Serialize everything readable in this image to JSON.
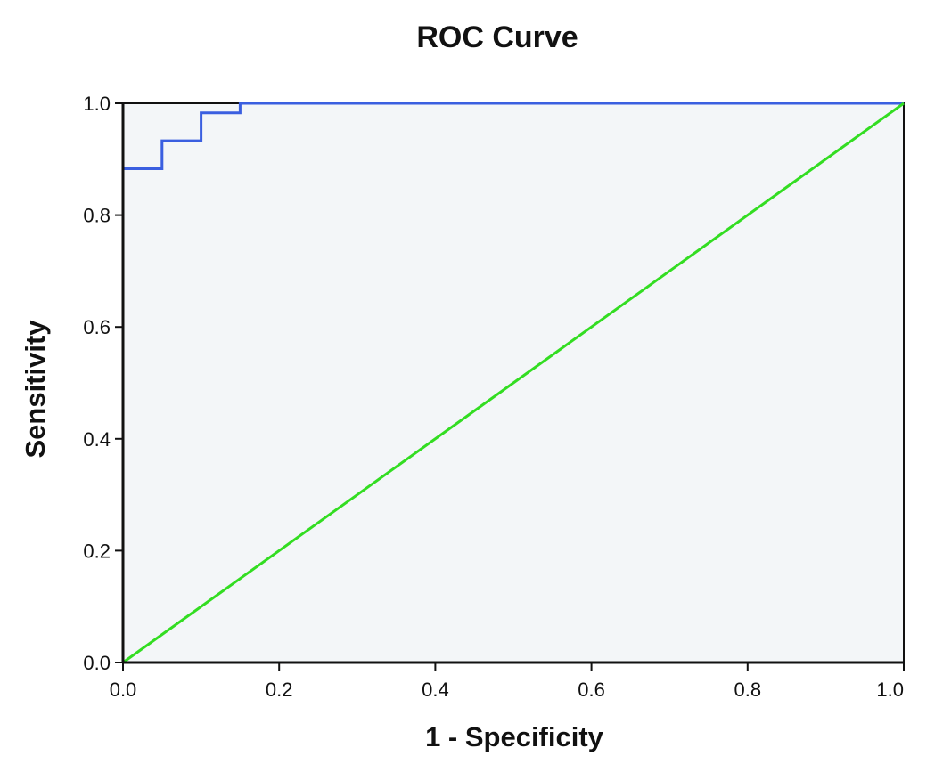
{
  "chart_data": {
    "type": "line",
    "title": "ROC Curve",
    "xlabel": "1 - Specificity",
    "ylabel": "Sensitivity",
    "xlim": [
      0.0,
      1.0
    ],
    "ylim": [
      0.0,
      1.0
    ],
    "x_ticks": [
      "0.0",
      "0.2",
      "0.4",
      "0.6",
      "0.8",
      "1.0"
    ],
    "y_ticks": [
      "0.0",
      "0.2",
      "0.4",
      "0.6",
      "0.8",
      "1.0"
    ],
    "grid": false,
    "series": [
      {
        "color": "#3a5fe0",
        "step": true,
        "x": [
          0.0,
          0.0,
          0.05,
          0.05,
          0.1,
          0.1,
          0.15,
          0.15,
          1.0
        ],
        "y": [
          0.0,
          0.883,
          0.883,
          0.933,
          0.933,
          0.983,
          0.983,
          1.0,
          1.0
        ]
      },
      {
        "color": "#33dd22",
        "x": [
          0.0,
          1.0
        ],
        "y": [
          0.0,
          1.0
        ]
      }
    ],
    "colors": {
      "plot_background": "#f3f6f8",
      "axis": "#111111"
    }
  }
}
